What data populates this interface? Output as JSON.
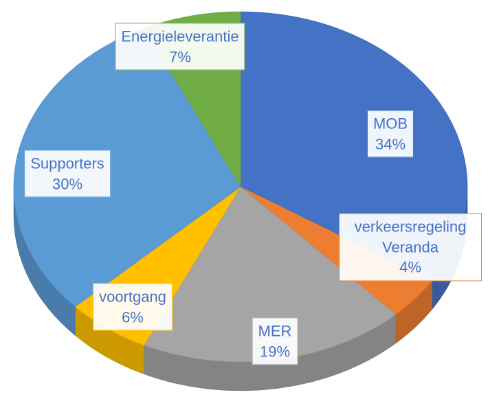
{
  "chart_data": {
    "type": "pie",
    "categories": [
      "MOB",
      "verkeersregeling Veranda",
      "MER",
      "voortgang",
      "Supporters",
      "Energieleverantie"
    ],
    "values": [
      34,
      4,
      19,
      6,
      30,
      7
    ],
    "value_labels": [
      "34%",
      "4%",
      "19%",
      "6%",
      "30%",
      "7%"
    ],
    "colors": [
      "#4472c4",
      "#ed7d31",
      "#a5a5a5",
      "#ffc000",
      "#5b9bd5",
      "#70ad47"
    ]
  }
}
